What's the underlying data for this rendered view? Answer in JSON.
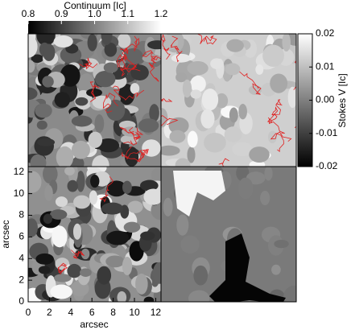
{
  "colorbar_top": {
    "title": "Continuum [Ic]",
    "lim": [
      0.8,
      1.2
    ],
    "ticks": [
      0.8,
      0.9,
      {
        "value": 1.0,
        "label": "1.0"
      },
      1.1,
      1.2
    ]
  },
  "colorbar_right": {
    "title": "Stokes V [Ic]",
    "lim": [
      -0.02,
      0.02
    ],
    "ticks": [
      0.02,
      0.01,
      {
        "value": 0,
        "label": "0.00"
      },
      -0.01,
      -0.02
    ]
  },
  "axes": {
    "xlabel": "arcsec",
    "ylabel": "arcsec",
    "xlim": [
      0,
      12.5
    ],
    "ylim": [
      0,
      12.5
    ],
    "xticks": [
      0,
      2,
      4,
      6,
      8,
      10,
      12
    ],
    "yticks": [
      0,
      2,
      4,
      6,
      8,
      10,
      12
    ]
  }
}
